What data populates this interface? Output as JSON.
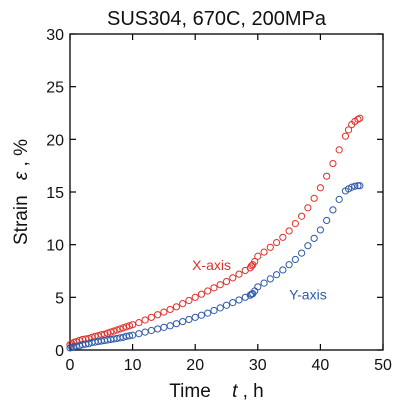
{
  "chart_data": {
    "type": "scatter",
    "title": "SUS304, 670C,  200MPa",
    "xlabel": {
      "prefix": "Time",
      "symbol": "t",
      "suffix": ",  h"
    },
    "ylabel": {
      "prefix": "Strain",
      "symbol": "ε",
      "suffix": ",  %"
    },
    "xlim": [
      0,
      50
    ],
    "ylim": [
      0,
      30
    ],
    "xticks": [
      0,
      10,
      20,
      30,
      40,
      50
    ],
    "yticks": [
      0,
      5,
      10,
      15,
      20,
      25,
      30
    ],
    "grid": false,
    "marker": "open-circle",
    "series": [
      {
        "name": "X-axis",
        "color": "#e0302a",
        "x": [
          0,
          0.3,
          0.6,
          1,
          1.5,
          2,
          2.5,
          3,
          3.5,
          4,
          4.5,
          5,
          5.5,
          6,
          6.5,
          7,
          7.5,
          8,
          8.5,
          9,
          9.5,
          10,
          11,
          12,
          13,
          14,
          15,
          16,
          17,
          18,
          19,
          20,
          21,
          22,
          23,
          24,
          25,
          26,
          27,
          28,
          28.8,
          29.0,
          29.2,
          29.5,
          30,
          31,
          32,
          33,
          34,
          35,
          36,
          37,
          38,
          39,
          40,
          41,
          42,
          43,
          44,
          44.5,
          45,
          45.5,
          46,
          46.3
        ],
        "y": [
          0.5,
          0.6,
          0.7,
          0.8,
          0.9,
          1.0,
          1.05,
          1.1,
          1.2,
          1.3,
          1.35,
          1.45,
          1.5,
          1.6,
          1.7,
          1.8,
          1.9,
          2.0,
          2.1,
          2.2,
          2.3,
          2.4,
          2.6,
          2.85,
          3.1,
          3.35,
          3.6,
          3.85,
          4.1,
          4.4,
          4.7,
          5.0,
          5.3,
          5.6,
          5.9,
          6.2,
          6.5,
          6.85,
          7.2,
          7.55,
          7.8,
          8.0,
          8.1,
          8.4,
          8.9,
          9.3,
          9.75,
          10.2,
          10.7,
          11.3,
          12.0,
          12.7,
          13.5,
          14.4,
          15.4,
          16.5,
          17.7,
          19.0,
          20.3,
          20.9,
          21.4,
          21.7,
          21.9,
          22.0
        ]
      },
      {
        "name": "Y-axis",
        "color": "#2f5aa8",
        "x": [
          0,
          0.3,
          0.6,
          1,
          1.5,
          2,
          2.5,
          3,
          3.5,
          4,
          4.5,
          5,
          5.5,
          6,
          6.5,
          7,
          7.5,
          8,
          8.5,
          9,
          9.5,
          10,
          11,
          12,
          13,
          14,
          15,
          16,
          17,
          18,
          19,
          20,
          21,
          22,
          23,
          24,
          25,
          26,
          27,
          28,
          28.8,
          29.0,
          29.2,
          29.5,
          30,
          31,
          32,
          33,
          34,
          35,
          36,
          37,
          38,
          39,
          40,
          41,
          42,
          43,
          44,
          44.5,
          45,
          45.5,
          46,
          46.3
        ],
        "y": [
          0.2,
          0.25,
          0.3,
          0.35,
          0.4,
          0.5,
          0.55,
          0.6,
          0.7,
          0.75,
          0.8,
          0.85,
          0.9,
          0.95,
          1.0,
          1.05,
          1.1,
          1.15,
          1.2,
          1.3,
          1.35,
          1.4,
          1.55,
          1.7,
          1.85,
          2.0,
          2.15,
          2.3,
          2.5,
          2.7,
          2.9,
          3.1,
          3.3,
          3.5,
          3.75,
          4.0,
          4.25,
          4.5,
          4.75,
          5.0,
          5.2,
          5.3,
          5.35,
          5.6,
          6.0,
          6.35,
          6.75,
          7.15,
          7.6,
          8.1,
          8.6,
          9.2,
          9.9,
          10.6,
          11.4,
          12.3,
          13.3,
          14.3,
          15.1,
          15.3,
          15.45,
          15.55,
          15.6,
          15.6
        ]
      }
    ]
  }
}
